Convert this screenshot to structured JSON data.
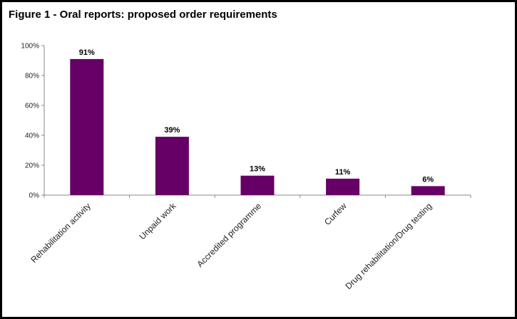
{
  "chart_data": {
    "type": "bar",
    "title": "Figure 1 - Oral reports: proposed order requirements",
    "categories": [
      "Rehabilitation activity",
      "Unpaid work",
      "Accredited programme",
      "Curfew",
      "Drug rehabilitation/Drug testing"
    ],
    "values": [
      91,
      39,
      13,
      11,
      6
    ],
    "data_labels": [
      "91%",
      "39%",
      "13%",
      "11%",
      "6%"
    ],
    "xlabel": "",
    "ylabel": "",
    "ylim": [
      0,
      100
    ],
    "yticks": [
      "0%",
      "20%",
      "40%",
      "60%",
      "80%",
      "100%"
    ],
    "bar_color": "#660066",
    "grid": false,
    "legend": "none"
  }
}
